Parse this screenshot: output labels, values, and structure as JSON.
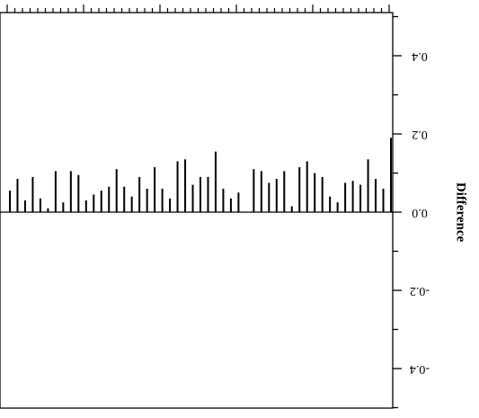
{
  "chart_data": {
    "type": "bar",
    "orientation": "rotated-180",
    "title": "",
    "xlabel": "",
    "ylabel": "Difference",
    "ylim": [
      -0.5,
      0.5
    ],
    "ytick_values": [
      -0.4,
      -0.2,
      0.0,
      0.2,
      0.4
    ],
    "ytick_labels": [
      "-0.4",
      "-0.2",
      "0.0",
      "0.2",
      "0.4"
    ],
    "grid": false,
    "legend": "none",
    "bar_color": "#000000",
    "values": [
      0.055,
      0.085,
      0.03,
      0.09,
      0.035,
      0.01,
      0.105,
      0.025,
      0.105,
      0.095,
      0.03,
      0.045,
      0.055,
      0.065,
      0.11,
      0.065,
      0.04,
      0.09,
      0.06,
      0.115,
      0.06,
      0.035,
      0.13,
      0.135,
      0.07,
      0.09,
      0.09,
      0.155,
      0.06,
      0.035,
      0.05,
      0.0,
      0.11,
      0.105,
      0.075,
      0.085,
      0.105,
      0.015,
      0.115,
      0.13,
      0.1,
      0.09,
      0.04,
      0.025,
      0.075,
      0.08,
      0.07,
      0.135,
      0.085,
      0.06,
      0.19
    ]
  }
}
